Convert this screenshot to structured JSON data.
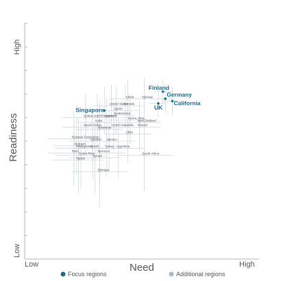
{
  "chart_data": {
    "type": "scatter",
    "title": "",
    "xlabel": "Need",
    "ylabel": "Readiness",
    "x_low_label": "Low",
    "x_high_label": "High",
    "y_low_label": "Low",
    "y_high_label": "High",
    "xlim": [
      0,
      100
    ],
    "ylim": [
      0,
      100
    ],
    "grid": false,
    "legend_position": "bottom",
    "legend": [
      {
        "name": "Focus regions",
        "color": "#1f6a87"
      },
      {
        "name": "Additional regions",
        "color": "#a9b8c6"
      }
    ],
    "series": [
      {
        "name": "Focus regions",
        "color": "#1f6a87",
        "points": [
          {
            "label": "Finland",
            "x": 59,
            "y": 71,
            "xerr": 4,
            "yerr": 5
          },
          {
            "label": "Germany",
            "x": 60,
            "y": 68,
            "xerr": 4,
            "yerr": 6
          },
          {
            "label": "California",
            "x": 63,
            "y": 67,
            "xerr": 4,
            "yerr": 6
          },
          {
            "label": "UK",
            "x": 57,
            "y": 66,
            "xerr": 4,
            "yerr": 6
          },
          {
            "label": "Singapore",
            "x": 34,
            "y": 63,
            "xerr": 4,
            "yerr": 10
          }
        ]
      },
      {
        "name": "Additional regions",
        "color": "#a9b8c6",
        "points": [
          {
            "label": "China",
            "x": 44,
            "y": 68,
            "xerr": 8,
            "yerr": 8
          },
          {
            "label": "Norway",
            "x": 51,
            "y": 68,
            "xerr": 8,
            "yerr": 9
          },
          {
            "label": "United States",
            "x": 37,
            "y": 65,
            "xerr": 8,
            "yerr": 9
          },
          {
            "label": "Canada",
            "x": 43,
            "y": 65,
            "xerr": 8,
            "yerr": 9
          },
          {
            "label": "Japan",
            "x": 39,
            "y": 63,
            "xerr": 10,
            "yerr": 10
          },
          {
            "label": "Switzerland",
            "x": 39,
            "y": 61,
            "xerr": 8,
            "yerr": 8
          },
          {
            "label": "United Arab Emirates",
            "x": 26,
            "y": 60,
            "xerr": 10,
            "yerr": 10
          },
          {
            "label": "Australia",
            "x": 35,
            "y": 60,
            "xerr": 9,
            "yerr": 9
          },
          {
            "label": "Korea, Rep.",
            "x": 45,
            "y": 59,
            "xerr": 9,
            "yerr": 10
          },
          {
            "label": "New Zealand",
            "x": 49,
            "y": 58,
            "xerr": 9,
            "yerr": 9
          },
          {
            "label": "India",
            "x": 31,
            "y": 58,
            "xerr": 9,
            "yerr": 12
          },
          {
            "label": "Poland",
            "x": 49,
            "y": 56,
            "xerr": 9,
            "yerr": 10
          },
          {
            "label": "Czech Republic",
            "x": 38,
            "y": 56,
            "xerr": 10,
            "yerr": 10
          },
          {
            "label": "Saudi Arabia",
            "x": 26,
            "y": 56,
            "xerr": 10,
            "yerr": 11
          },
          {
            "label": "Indonesia",
            "x": 32,
            "y": 55,
            "xerr": 10,
            "yerr": 12
          },
          {
            "label": "Chile",
            "x": 44,
            "y": 53,
            "xerr": 10,
            "yerr": 12
          },
          {
            "label": "Russian Federation",
            "x": 21,
            "y": 51,
            "xerr": 11,
            "yerr": 12
          },
          {
            "label": "Ukraine",
            "x": 29,
            "y": 50,
            "xerr": 10,
            "yerr": 12
          },
          {
            "label": "Mexico",
            "x": 36,
            "y": 50,
            "xerr": 11,
            "yerr": 13
          },
          {
            "label": "Vietnam",
            "x": 22,
            "y": 48,
            "xerr": 10,
            "yerr": 12
          },
          {
            "label": "Philippines",
            "x": 23,
            "y": 47,
            "xerr": 10,
            "yerr": 13
          },
          {
            "label": "Brazil",
            "x": 29,
            "y": 47,
            "xerr": 11,
            "yerr": 13
          },
          {
            "label": "Turkey",
            "x": 35,
            "y": 47,
            "xerr": 10,
            "yerr": 12
          },
          {
            "label": "Argentina",
            "x": 40,
            "y": 47,
            "xerr": 11,
            "yerr": 13
          },
          {
            "label": "Morocco",
            "x": 32,
            "y": 45,
            "xerr": 11,
            "yerr": 14
          },
          {
            "label": "Peru",
            "x": 21,
            "y": 45,
            "xerr": 11,
            "yerr": 14
          },
          {
            "label": "Costa Rica",
            "x": 24,
            "y": 44,
            "xerr": 11,
            "yerr": 14
          },
          {
            "label": "Kenya",
            "x": 30,
            "y": 43,
            "xerr": 11,
            "yerr": 15
          },
          {
            "label": "South Africa",
            "x": 51,
            "y": 44,
            "xerr": 12,
            "yerr": 15
          },
          {
            "label": "Nepal",
            "x": 23,
            "y": 42,
            "xerr": 11,
            "yerr": 14
          },
          {
            "label": "Ethiopia",
            "x": 32,
            "y": 37,
            "xerr": 12,
            "yerr": 15
          }
        ]
      }
    ]
  }
}
